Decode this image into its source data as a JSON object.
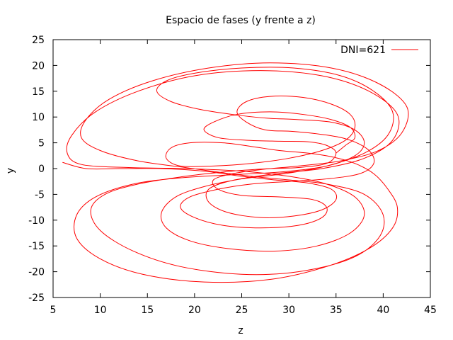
{
  "chart_data": {
    "type": "line",
    "title": "Espacio de fases (y frente a z)",
    "xlabel": "z",
    "ylabel": "y",
    "xlim": [
      5,
      45
    ],
    "ylim": [
      -25,
      25
    ],
    "xticks": [
      "5",
      "10",
      "15",
      "20",
      "25",
      "30",
      "35",
      "40",
      "45"
    ],
    "yticks": [
      "-25",
      "-20",
      "-15",
      "-10",
      "-5",
      "0",
      "5",
      "10",
      "15",
      "20",
      "25"
    ],
    "grid": false,
    "legend_position": "top-right",
    "series": [
      {
        "name": "DNI=621",
        "color": "#ff0000",
        "points": [
          [
            35.0,
            3.0
          ],
          [
            36.0,
            4.5
          ],
          [
            37.0,
            6.0
          ],
          [
            36.5,
            8.0
          ],
          [
            34.5,
            9.5
          ],
          [
            31.5,
            10.5
          ],
          [
            28.0,
            11.0
          ],
          [
            24.5,
            10.5
          ],
          [
            22.0,
            9.0
          ],
          [
            21.0,
            7.5
          ],
          [
            22.5,
            6.0
          ],
          [
            25.5,
            5.5
          ],
          [
            29.0,
            5.3
          ],
          [
            32.0,
            5.2
          ],
          [
            34.0,
            4.5
          ],
          [
            35.0,
            3.0
          ],
          [
            34.0,
            1.0
          ],
          [
            31.0,
            0.2
          ],
          [
            28.0,
            0.0
          ],
          [
            24.0,
            -0.5
          ],
          [
            19.0,
            -1.5
          ],
          [
            14.0,
            -3.0
          ],
          [
            10.5,
            -5.0
          ],
          [
            9.0,
            -8.0
          ],
          [
            10.0,
            -12.0
          ],
          [
            13.5,
            -16.0
          ],
          [
            18.5,
            -19.0
          ],
          [
            25.0,
            -20.5
          ],
          [
            31.0,
            -20.0
          ],
          [
            36.5,
            -17.5
          ],
          [
            39.5,
            -13.5
          ],
          [
            40.0,
            -9.0
          ],
          [
            38.0,
            -5.0
          ],
          [
            34.0,
            -3.0
          ],
          [
            30.0,
            -2.2
          ],
          [
            26.5,
            -1.6
          ],
          [
            23.0,
            -0.8
          ],
          [
            19.0,
            0.2
          ],
          [
            14.0,
            1.5
          ],
          [
            10.0,
            3.5
          ],
          [
            8.0,
            6.0
          ],
          [
            8.5,
            9.5
          ],
          [
            11.0,
            13.5
          ],
          [
            15.5,
            17.0
          ],
          [
            21.5,
            19.5
          ],
          [
            28.0,
            20.5
          ],
          [
            34.5,
            19.5
          ],
          [
            39.5,
            16.5
          ],
          [
            42.5,
            12.0
          ],
          [
            42.0,
            7.0
          ],
          [
            39.5,
            3.5
          ],
          [
            35.5,
            1.5
          ],
          [
            31.0,
            0.5
          ],
          [
            27.0,
            -0.2
          ],
          [
            24.0,
            -1.0
          ],
          [
            22.0,
            -2.2
          ],
          [
            22.5,
            -4.0
          ],
          [
            25.0,
            -5.2
          ],
          [
            29.0,
            -5.5
          ],
          [
            32.5,
            -6.0
          ],
          [
            34.0,
            -7.5
          ],
          [
            33.5,
            -9.5
          ],
          [
            31.0,
            -11.0
          ],
          [
            27.0,
            -11.5
          ],
          [
            23.0,
            -11.0
          ],
          [
            20.0,
            -9.5
          ],
          [
            18.5,
            -7.5
          ],
          [
            19.5,
            -5.5
          ],
          [
            22.5,
            -4.0
          ],
          [
            26.0,
            -3.0
          ],
          [
            30.0,
            -2.5
          ],
          [
            34.0,
            -2.0
          ],
          [
            37.5,
            -1.0
          ],
          [
            39.0,
            1.0
          ],
          [
            38.5,
            3.5
          ],
          [
            36.5,
            5.5
          ],
          [
            34.0,
            6.5
          ],
          [
            30.5,
            7.2
          ],
          [
            27.5,
            7.5
          ],
          [
            25.5,
            9.0
          ],
          [
            24.5,
            11.0
          ],
          [
            25.5,
            13.0
          ],
          [
            28.0,
            14.0
          ],
          [
            31.5,
            13.8
          ],
          [
            34.5,
            12.5
          ],
          [
            36.5,
            10.5
          ],
          [
            37.0,
            8.0
          ],
          [
            36.0,
            5.5
          ],
          [
            33.5,
            3.5
          ],
          [
            30.0,
            2.0
          ],
          [
            26.0,
            1.0
          ],
          [
            22.0,
            0.5
          ],
          [
            18.5,
            0.5
          ],
          [
            17.0,
            2.0
          ],
          [
            17.5,
            4.0
          ],
          [
            19.5,
            5.0
          ],
          [
            23.0,
            5.0
          ],
          [
            26.0,
            4.3
          ],
          [
            29.0,
            3.5
          ],
          [
            32.0,
            3.0
          ],
          [
            34.5,
            2.3
          ],
          [
            37.0,
            1.0
          ],
          [
            39.0,
            -1.0
          ],
          [
            40.5,
            -4.0
          ],
          [
            41.5,
            -7.5
          ],
          [
            41.0,
            -11.5
          ],
          [
            38.5,
            -15.5
          ],
          [
            34.0,
            -19.0
          ],
          [
            28.0,
            -21.5
          ],
          [
            21.0,
            -22.0
          ],
          [
            14.5,
            -20.5
          ],
          [
            10.0,
            -17.5
          ],
          [
            7.5,
            -13.5
          ],
          [
            7.5,
            -9.0
          ],
          [
            9.5,
            -5.5
          ],
          [
            13.5,
            -3.0
          ],
          [
            18.5,
            -1.8
          ],
          [
            24.0,
            -1.2
          ],
          [
            29.5,
            -0.6
          ],
          [
            34.0,
            0.5
          ],
          [
            37.0,
            2.5
          ],
          [
            38.0,
            5.0
          ],
          [
            37.0,
            7.5
          ],
          [
            34.5,
            9.0
          ],
          [
            31.0,
            9.5
          ],
          [
            27.5,
            9.8
          ],
          [
            24.0,
            10.5
          ],
          [
            20.5,
            11.5
          ],
          [
            17.5,
            13.0
          ],
          [
            16.0,
            15.0
          ],
          [
            17.0,
            17.0
          ],
          [
            20.0,
            18.5
          ],
          [
            25.0,
            19.5
          ],
          [
            30.5,
            19.5
          ],
          [
            35.5,
            18.0
          ],
          [
            39.0,
            15.0
          ],
          [
            41.0,
            11.0
          ],
          [
            40.5,
            6.5
          ],
          [
            38.0,
            3.0
          ],
          [
            34.0,
            0.5
          ],
          [
            29.5,
            -1.0
          ],
          [
            25.0,
            -2.0
          ],
          [
            21.0,
            -3.5
          ],
          [
            18.0,
            -5.5
          ],
          [
            16.5,
            -8.5
          ],
          [
            17.0,
            -11.5
          ],
          [
            19.5,
            -14.0
          ],
          [
            23.5,
            -15.5
          ],
          [
            28.5,
            -16.0
          ],
          [
            33.0,
            -15.0
          ],
          [
            36.5,
            -12.5
          ],
          [
            38.0,
            -9.0
          ],
          [
            37.0,
            -5.5
          ],
          [
            34.0,
            -3.0
          ],
          [
            30.0,
            -1.5
          ],
          [
            25.0,
            -0.5
          ],
          [
            19.0,
            0.0
          ],
          [
            13.0,
            0.2
          ],
          [
            8.0,
            0.8
          ],
          [
            6.5,
            3.0
          ],
          [
            7.0,
            6.5
          ],
          [
            9.5,
            11.0
          ],
          [
            14.0,
            15.0
          ],
          [
            20.0,
            18.0
          ],
          [
            27.0,
            19.0
          ],
          [
            33.5,
            18.0
          ],
          [
            38.5,
            15.0
          ],
          [
            41.5,
            10.5
          ],
          [
            41.0,
            5.5
          ],
          [
            38.0,
            2.0
          ],
          [
            33.5,
            0.0
          ],
          [
            28.5,
            -1.0
          ],
          [
            24.0,
            -2.3
          ],
          [
            21.5,
            -4.0
          ],
          [
            21.5,
            -6.5
          ],
          [
            23.5,
            -8.5
          ],
          [
            27.0,
            -9.5
          ],
          [
            30.5,
            -9.2
          ],
          [
            33.5,
            -8.0
          ],
          [
            35.0,
            -6.0
          ],
          [
            34.5,
            -4.0
          ],
          [
            32.0,
            -2.8
          ],
          [
            28.5,
            -2.2
          ],
          [
            25.0,
            -1.5
          ],
          [
            21.0,
            -0.5
          ],
          [
            16.5,
            0.0
          ],
          [
            12.0,
            0.0
          ],
          [
            8.5,
            0.0
          ],
          [
            6.0,
            1.2
          ]
        ]
      }
    ]
  }
}
